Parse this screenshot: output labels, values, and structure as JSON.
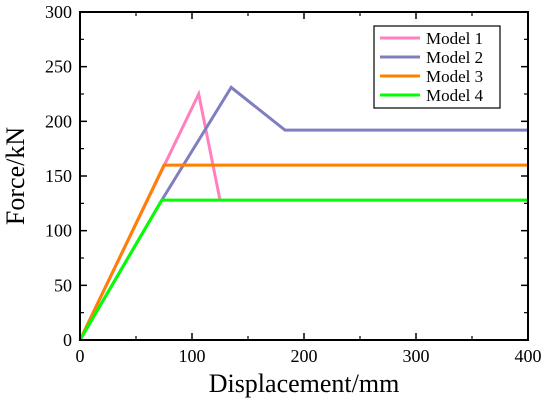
{
  "chart_data": {
    "type": "line",
    "title": "",
    "xlabel": "Displacement/mm",
    "ylabel": "Force/kN",
    "xlim": [
      0,
      400
    ],
    "ylim": [
      0,
      300
    ],
    "xticks": [
      0,
      100,
      200,
      300,
      400
    ],
    "yticks": [
      0,
      50,
      100,
      150,
      200,
      250,
      300
    ],
    "grid": false,
    "legend_position": "top-right",
    "series": [
      {
        "name": "Model 1",
        "color": "#ff7fbf",
        "x": [
          0,
          106,
          125
        ],
        "y": [
          0,
          225,
          128
        ]
      },
      {
        "name": "Model 2",
        "color": "#7f7fbf",
        "x": [
          0,
          73,
          135,
          183,
          400
        ],
        "y": [
          0,
          128,
          231,
          192,
          192
        ]
      },
      {
        "name": "Model 3",
        "color": "#ff7f00",
        "x": [
          0,
          75,
          400
        ],
        "y": [
          0,
          160,
          160
        ]
      },
      {
        "name": "Model 4",
        "color": "#00ff00",
        "x": [
          0,
          73,
          400
        ],
        "y": [
          0,
          128,
          128
        ]
      }
    ]
  }
}
